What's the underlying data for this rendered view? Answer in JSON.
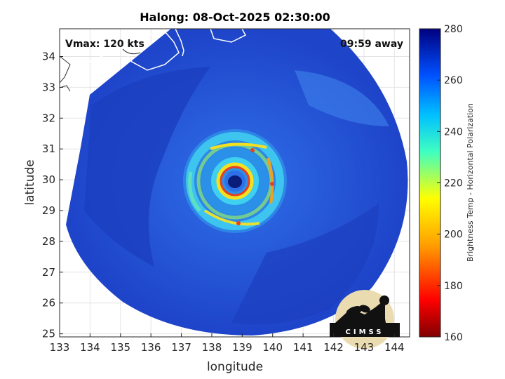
{
  "title": "Halong: 08-Oct-2025 02:30:00",
  "vmax_label": "Vmax: 120 kts",
  "time_away": "09:59 away",
  "xlabel": "longitude",
  "ylabel": "latitude",
  "colorbar_label": "Brightness Temp - Horizontal Polarization",
  "logo_text": "CIMSS",
  "xticks": [
    "133",
    "134",
    "135",
    "136",
    "137",
    "138",
    "139",
    "140",
    "141",
    "142",
    "143",
    "144"
  ],
  "yticks": [
    "25",
    "26",
    "27",
    "28",
    "29",
    "30",
    "31",
    "32",
    "33",
    "34"
  ],
  "colorbar_ticks": [
    "160",
    "180",
    "200",
    "220",
    "240",
    "260",
    "280"
  ],
  "colors": {
    "ocean_deep": "#1f3fc4",
    "ocean_mid": "#2f63e0",
    "ring_cyan": "#3fd0f0",
    "ring_yellow": "#f5e020",
    "ring_red": "#e84020",
    "eye": "#0a1d7a"
  },
  "map": {
    "lon_range": [
      133,
      144.5
    ],
    "lat_range": [
      24.9,
      34.9
    ],
    "storm_center": {
      "lon": 138.6,
      "lat": 29.9
    },
    "colorbar_range": [
      160,
      280
    ]
  }
}
